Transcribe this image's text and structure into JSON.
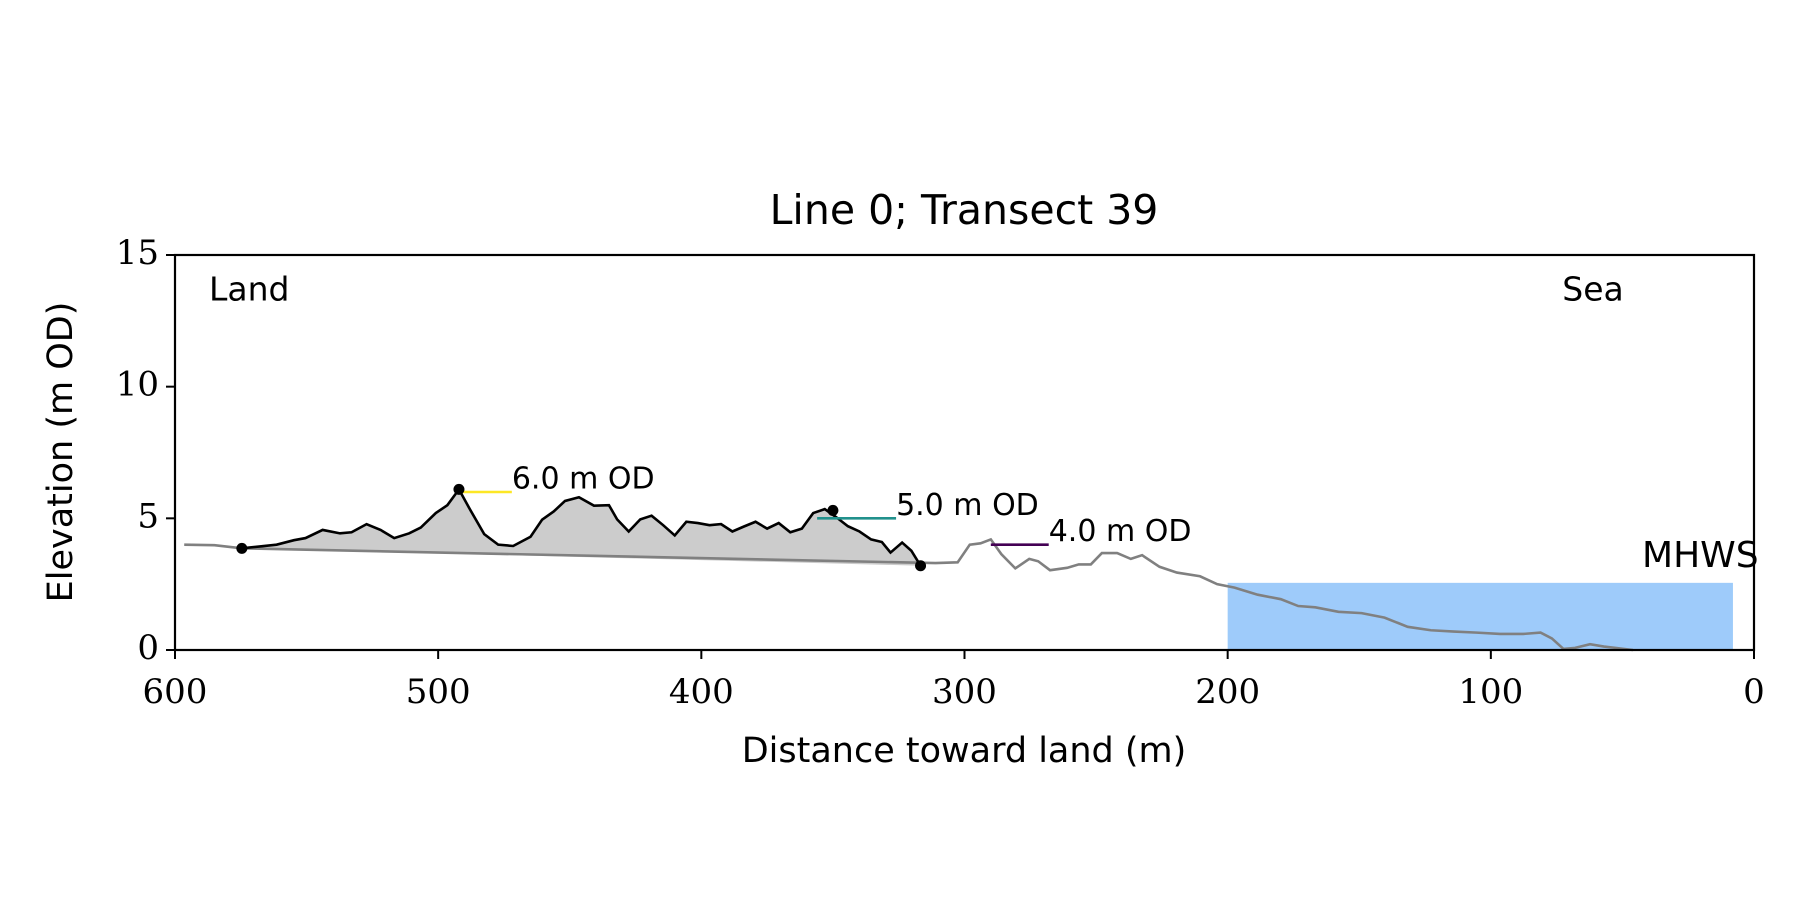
{
  "chart_data": {
    "type": "line",
    "title": "Line 0; Transect 39",
    "xlabel": "Distance toward land (m)",
    "ylabel": "Elevation (m OD)",
    "xlim": [
      600,
      0
    ],
    "ylim": [
      0,
      15
    ],
    "xticks": [
      600,
      500,
      400,
      300,
      200,
      100,
      0
    ],
    "yticks": [
      0,
      5,
      10,
      15
    ],
    "annotations": {
      "left": "Land",
      "right": "Sea"
    },
    "profile": {
      "color": "#808080",
      "x": [
        596.5,
        585,
        574.6,
        311,
        302.6,
        298,
        293.9,
        290,
        286,
        280.7,
        275.4,
        272,
        267.5,
        261,
        256.6,
        252,
        247.8,
        242,
        236.8,
        232.5,
        225.9,
        219.3,
        210.5,
        204,
        197.4,
        188.6,
        179.8,
        173.2,
        166.7,
        157.9,
        149.1,
        140.4,
        131.6,
        122.8,
        114,
        105.3,
        96.5,
        87.7,
        81.1,
        76.8,
        72.4,
        68,
        62.3,
        57,
        52.6,
        46
      ],
      "y": [
        4.0,
        3.98,
        3.86,
        3.3,
        3.33,
        4.0,
        4.05,
        4.2,
        3.64,
        3.1,
        3.46,
        3.37,
        3.03,
        3.12,
        3.25,
        3.25,
        3.68,
        3.68,
        3.46,
        3.6,
        3.16,
        2.94,
        2.8,
        2.5,
        2.37,
        2.1,
        1.93,
        1.67,
        1.62,
        1.45,
        1.4,
        1.23,
        0.88,
        0.75,
        0.7,
        0.66,
        0.61,
        0.61,
        0.66,
        0.44,
        0.04,
        0.08,
        0.22,
        0.13,
        0.08,
        0.0
      ]
    },
    "dune": {
      "color": "#000000",
      "fill": "#cccccc",
      "x": [
        574.6,
        561.4,
        554.8,
        550.4,
        543.9,
        537.3,
        532.9,
        527.2,
        521.9,
        516.7,
        511.0,
        506.6,
        500.9,
        496.5,
        492.1,
        487.7,
        482.5,
        477.2,
        471.5,
        464.9,
        460.5,
        456.1,
        451.8,
        446.5,
        440.8,
        435.1,
        432.0,
        427.6,
        423.2,
        418.9,
        414.5,
        410.1,
        405.7,
        401.3,
        396.9,
        392.5,
        388.2,
        383.8,
        379.4,
        375.0,
        370.6,
        366.2,
        361.8,
        357.5,
        353.1,
        348.7,
        344.3,
        339.9,
        335.5,
        331.4,
        328.1,
        323.7,
        320.2,
        316.7
      ],
      "y": [
        3.86,
        4.0,
        4.17,
        4.25,
        4.56,
        4.43,
        4.47,
        4.78,
        4.56,
        4.25,
        4.43,
        4.65,
        5.2,
        5.5,
        6.1,
        5.3,
        4.4,
        4.0,
        3.95,
        4.3,
        4.95,
        5.26,
        5.66,
        5.8,
        5.48,
        5.5,
        4.96,
        4.5,
        4.96,
        5.1,
        4.74,
        4.35,
        4.87,
        4.82,
        4.74,
        4.78,
        4.5,
        4.69,
        4.87,
        4.61,
        4.82,
        4.47,
        4.61,
        5.2,
        5.35,
        5.04,
        4.7,
        4.5,
        4.2,
        4.1,
        3.7,
        4.08,
        3.77,
        3.2
      ]
    },
    "points": {
      "color": "#000000",
      "x": [
        574.6,
        492.1,
        350.0,
        316.7
      ],
      "y": [
        3.86,
        6.1,
        5.3,
        3.2
      ]
    },
    "levels": [
      {
        "label": "6.0 m OD",
        "value": 6.0,
        "x": [
          492,
          472
        ],
        "color": "#fde725"
      },
      {
        "label": "5.0 m OD",
        "value": 5.0,
        "x": [
          356,
          326
        ],
        "color": "#21918c"
      },
      {
        "label": "4.0 m OD",
        "value": 4.0,
        "x": [
          290,
          268
        ],
        "color": "#440154"
      }
    ],
    "mhws": {
      "label": "MHWS",
      "value": 2.55,
      "x": [
        200,
        8
      ],
      "color": "#9ecbfa",
      "label_color": "#6699cc"
    }
  }
}
